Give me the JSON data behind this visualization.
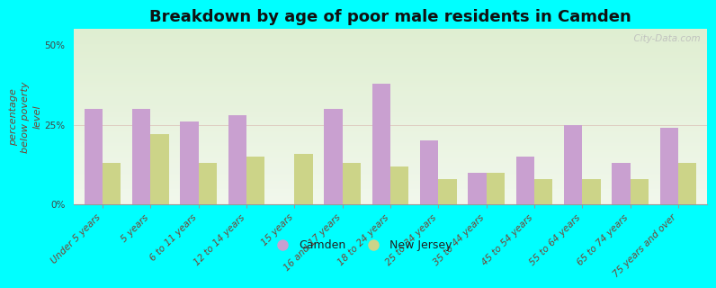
{
  "title": "Breakdown by age of poor male residents in Camden",
  "categories": [
    "Under 5 years",
    "5 years",
    "6 to 11 years",
    "12 to 14 years",
    "15 years",
    "16 and 17 years",
    "18 to 24 years",
    "25 to 34 years",
    "35 to 44 years",
    "45 to 54 years",
    "55 to 64 years",
    "65 to 74 years",
    "75 years and over"
  ],
  "camden_values": [
    30,
    30,
    26,
    28,
    0,
    30,
    38,
    20,
    10,
    15,
    25,
    13,
    24
  ],
  "nj_values": [
    13,
    22,
    13,
    15,
    16,
    13,
    12,
    8,
    10,
    8,
    8,
    8,
    13
  ],
  "camden_color": "#c9a0d0",
  "nj_color": "#ccd488",
  "plot_bg": "#eaf2e0",
  "outer_bg": "#00ffff",
  "ylabel": "percentage\nbelow poverty\nlevel",
  "ylim": [
    0,
    55
  ],
  "yticks": [
    0,
    25,
    50
  ],
  "ytick_labels": [
    "0%",
    "25%",
    "50%"
  ],
  "legend_labels": [
    "Camden",
    "New Jersey"
  ],
  "watermark": "  City-Data.com",
  "title_fontsize": 13,
  "axis_label_fontsize": 8,
  "tick_fontsize": 7.5,
  "legend_fontsize": 9,
  "bar_width": 0.38
}
